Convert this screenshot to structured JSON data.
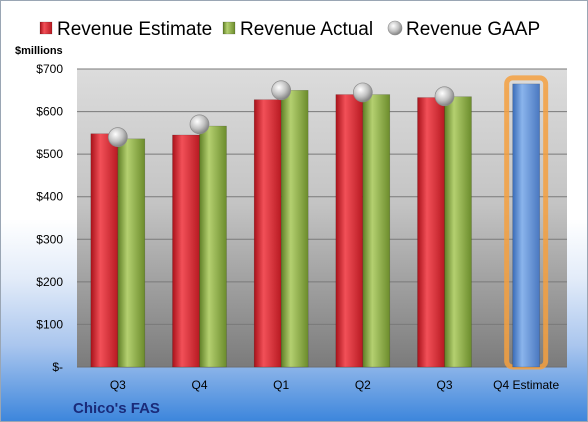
{
  "chart_data": {
    "type": "bar",
    "title": "",
    "company": "Chico's FAS",
    "unit_label": "$millions",
    "categories": [
      "Q3",
      "Q4",
      "Q1",
      "Q2",
      "Q3",
      "Q4 Estimate"
    ],
    "y_ticks": [
      "$-",
      "$100",
      "$200",
      "$300",
      "$400",
      "$500",
      "$600",
      "$700"
    ],
    "ylim": [
      0,
      700
    ],
    "grid": true,
    "legend_position": "top",
    "series": [
      {
        "name": "Revenue Estimate",
        "kind": "bar",
        "color": "#d9303a",
        "values": [
          548,
          545,
          628,
          640,
          633,
          null
        ]
      },
      {
        "name": "Revenue Actual",
        "kind": "bar",
        "color": "#8fb04a",
        "values": [
          536,
          566,
          650,
          640,
          635,
          null
        ]
      },
      {
        "name": "Revenue GAAP",
        "kind": "marker",
        "color": "#b8b8b8",
        "values": [
          540,
          570,
          650,
          645,
          636,
          null
        ]
      },
      {
        "name": "Q4 Estimate",
        "kind": "bar-highlight",
        "color": "#5b8fd4",
        "glow": "#f5a040",
        "values": [
          null,
          null,
          null,
          null,
          null,
          665
        ]
      }
    ]
  }
}
